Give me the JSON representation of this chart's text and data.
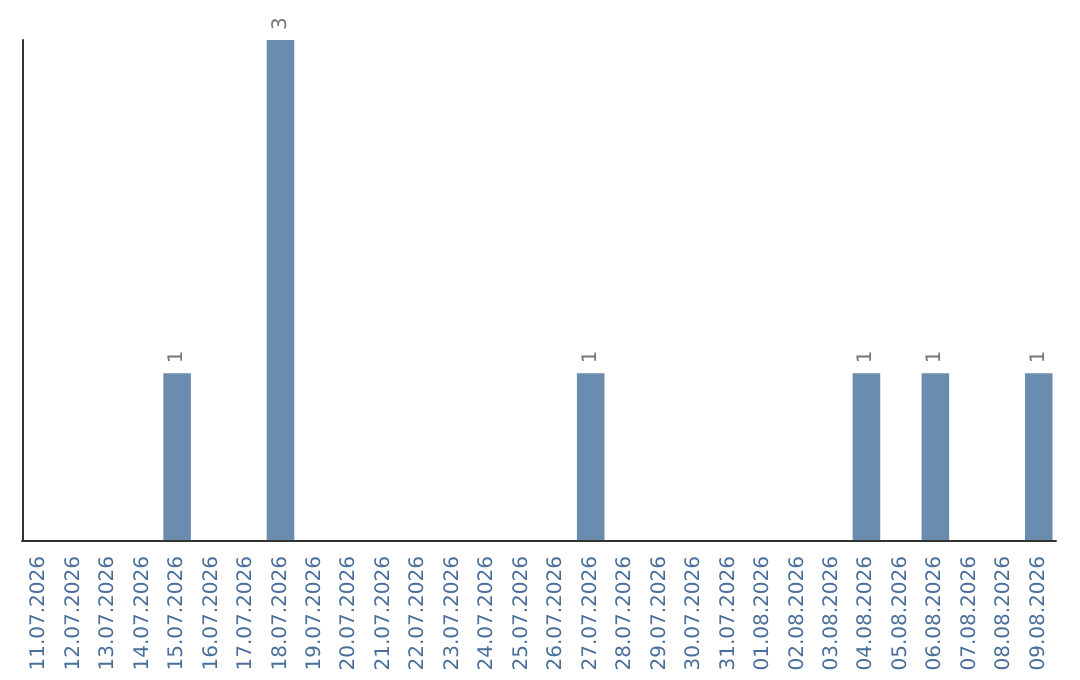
{
  "chart_data": {
    "type": "bar",
    "categories": [
      "11.07.2026",
      "12.07.2026",
      "13.07.2026",
      "14.07.2026",
      "15.07.2026",
      "16.07.2026",
      "17.07.2026",
      "18.07.2026",
      "19.07.2026",
      "20.07.2026",
      "21.07.2026",
      "22.07.2026",
      "23.07.2026",
      "24.07.2026",
      "25.07.2026",
      "26.07.2026",
      "27.07.2026",
      "28.07.2026",
      "29.07.2026",
      "30.07.2026",
      "31.07.2026",
      "01.08.2026",
      "02.08.2026",
      "03.08.2026",
      "04.08.2026",
      "05.08.2026",
      "06.08.2026",
      "07.08.2026",
      "08.08.2026",
      "09.08.2026"
    ],
    "values": [
      0,
      0,
      0,
      0,
      1,
      0,
      0,
      3,
      0,
      0,
      0,
      0,
      0,
      0,
      0,
      0,
      1,
      0,
      0,
      0,
      0,
      0,
      0,
      0,
      1,
      0,
      1,
      0,
      0,
      1
    ],
    "value_labels": [
      null,
      null,
      null,
      null,
      "1",
      null,
      null,
      "3",
      null,
      null,
      null,
      null,
      null,
      null,
      null,
      null,
      "1",
      null,
      null,
      null,
      null,
      null,
      null,
      null,
      "1",
      null,
      "1",
      null,
      null,
      "1"
    ],
    "color": "#6a8caf",
    "grid": false,
    "tick_labels": "x"
  }
}
